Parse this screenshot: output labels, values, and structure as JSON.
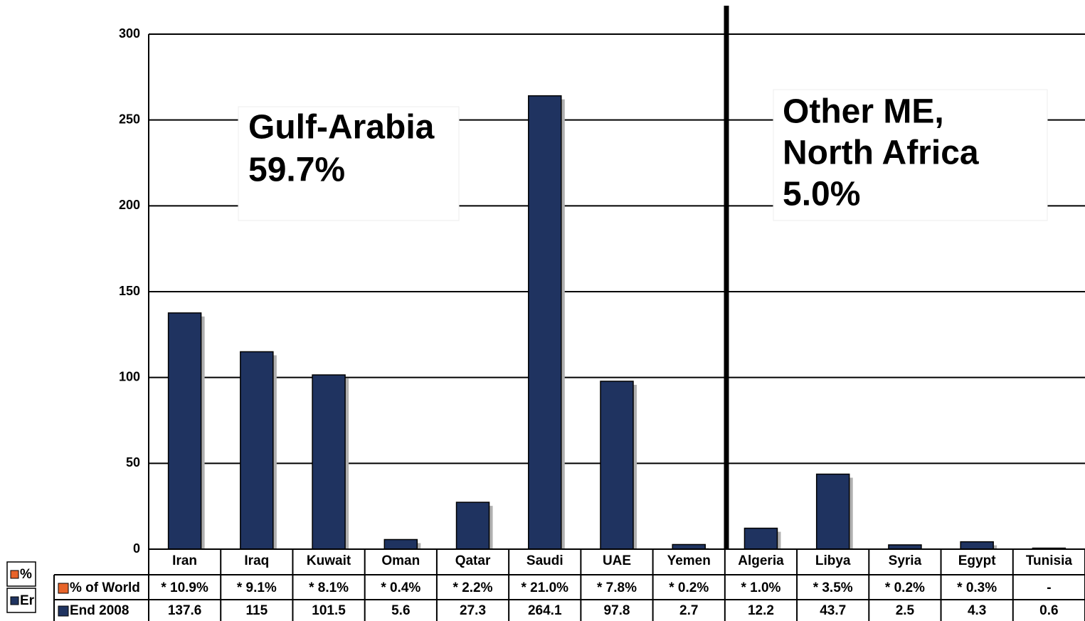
{
  "chart_data": {
    "type": "bar",
    "categories": [
      "Iran",
      "Iraq",
      "Kuwait",
      "Oman",
      "Qatar",
      "Saudi",
      "UAE",
      "Yemen",
      "Algeria",
      "Libya",
      "Syria",
      "Egypt",
      "Tunisia"
    ],
    "series": [
      {
        "name": "% of World",
        "color": "#e8642a",
        "table_only": true,
        "values": [
          10.9,
          9.1,
          8.1,
          0.4,
          2.2,
          21.0,
          7.8,
          0.2,
          1.0,
          3.5,
          0.2,
          0.3,
          null
        ],
        "value_labels": [
          "* 10.9%",
          "* 9.1%",
          "* 8.1%",
          "* 0.4%",
          "* 2.2%",
          "* 21.0%",
          "* 7.8%",
          "* 0.2%",
          "* 1.0%",
          "* 3.5%",
          "* 0.2%",
          "* 0.3%",
          "-"
        ]
      },
      {
        "name": "End 2008",
        "color": "#1f3360",
        "values": [
          137.6,
          115,
          101.5,
          5.6,
          27.3,
          264.1,
          97.8,
          2.7,
          12.2,
          43.7,
          2.5,
          4.3,
          0.6
        ]
      }
    ],
    "ylim": [
      0,
      300
    ],
    "yticks": [
      0,
      50,
      100,
      150,
      200,
      250,
      300
    ],
    "grid": true,
    "annotations": [
      [
        "Gulf-Arabia",
        "59.7%"
      ],
      [
        "Other ME,",
        "North Africa",
        "5.0%"
      ]
    ],
    "legend_stub": [
      "%",
      "Er"
    ]
  }
}
